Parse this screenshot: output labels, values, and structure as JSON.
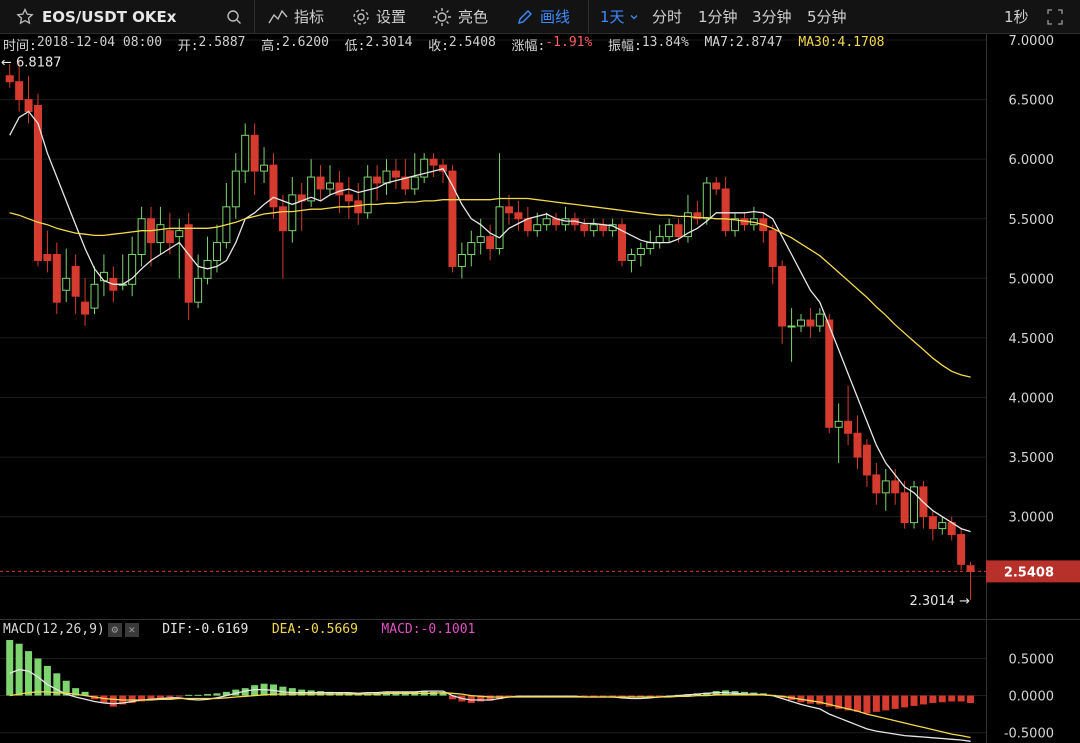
{
  "toolbar": {
    "symbol": "EOS/USDT OKEx",
    "indicators_label": "指标",
    "settings_label": "设置",
    "theme_label": "亮色",
    "draw_label": "画线",
    "interval_active": "1天",
    "intervals": [
      "分时",
      "1分钟",
      "3分钟",
      "5分钟"
    ],
    "right_interval": "1秒"
  },
  "info": {
    "time_label": "时间:",
    "time": "2018-12-04 08:00",
    "open_label": "开:",
    "open": "2.5887",
    "high_label": "高:",
    "high": "2.6200",
    "low_label": "低:",
    "low": "2.3014",
    "close_label": "收:",
    "close": "2.5408",
    "change_label": "涨幅:",
    "change": "-1.91%",
    "amplitude_label": "振幅:",
    "amplitude": "13.84%",
    "ma7_label": "MA7:",
    "ma7": "2.8747",
    "ma30_label": "MA30:",
    "ma30": "4.1708"
  },
  "chart_data": [
    {
      "type": "candlestick",
      "title": "EOS/USDT OKEx",
      "ylim": [
        2.2,
        7.0
      ],
      "y_ticks": [
        "7.0000",
        "6.5000",
        "6.0000",
        "5.5000",
        "5.0000",
        "4.5000",
        "4.0000",
        "3.5000",
        "3.0000",
        "2.5000"
      ],
      "last_price": "2.5408",
      "high_marker": "6.8187",
      "low_marker": "2.3014",
      "candles": [
        [
          6.7,
          6.65,
          6.8,
          6.6
        ],
        [
          6.65,
          6.5,
          6.82,
          6.4
        ],
        [
          6.5,
          6.4,
          6.7,
          6.3
        ],
        [
          6.45,
          5.15,
          6.55,
          5.1
        ],
        [
          5.2,
          5.15,
          5.4,
          5.05
        ],
        [
          5.2,
          4.8,
          5.3,
          4.7
        ],
        [
          4.9,
          5.0,
          5.25,
          4.8
        ],
        [
          5.1,
          4.85,
          5.2,
          4.7
        ],
        [
          4.8,
          4.7,
          5.0,
          4.6
        ],
        [
          4.75,
          4.95,
          5.1,
          4.7
        ],
        [
          4.98,
          5.05,
          5.2,
          4.85
        ],
        [
          5.0,
          4.9,
          5.1,
          4.8
        ],
        [
          4.95,
          4.95,
          5.2,
          4.9
        ],
        [
          4.95,
          5.2,
          5.35,
          4.85
        ],
        [
          5.2,
          5.5,
          5.6,
          5.1
        ],
        [
          5.5,
          5.3,
          5.6,
          5.1
        ],
        [
          5.3,
          5.45,
          5.6,
          5.2
        ],
        [
          5.4,
          5.3,
          5.55,
          5.2
        ],
        [
          5.35,
          5.4,
          5.5,
          5.0
        ],
        [
          5.45,
          4.8,
          5.55,
          4.65
        ],
        [
          4.8,
          5.0,
          5.2,
          4.75
        ],
        [
          5.0,
          5.15,
          5.35,
          4.95
        ],
        [
          5.15,
          5.3,
          5.45,
          5.05
        ],
        [
          5.3,
          5.6,
          5.8,
          5.25
        ],
        [
          5.6,
          5.9,
          6.05,
          5.5
        ],
        [
          5.9,
          6.2,
          6.3,
          5.8
        ],
        [
          6.2,
          5.9,
          6.3,
          5.7
        ],
        [
          5.9,
          5.95,
          6.1,
          5.8
        ],
        [
          5.95,
          5.6,
          6.05,
          5.5
        ],
        [
          5.6,
          5.4,
          5.7,
          5.0
        ],
        [
          5.4,
          5.7,
          5.85,
          5.3
        ],
        [
          5.7,
          5.65,
          5.8,
          5.4
        ],
        [
          5.65,
          5.85,
          6.0,
          5.6
        ],
        [
          5.85,
          5.75,
          5.95,
          5.65
        ],
        [
          5.75,
          5.8,
          5.95,
          5.7
        ],
        [
          5.8,
          5.7,
          5.9,
          5.55
        ],
        [
          5.7,
          5.65,
          5.85,
          5.5
        ],
        [
          5.65,
          5.55,
          5.8,
          5.45
        ],
        [
          5.55,
          5.85,
          5.95,
          5.5
        ],
        [
          5.85,
          5.8,
          5.95,
          5.65
        ],
        [
          5.8,
          5.9,
          6.0,
          5.7
        ],
        [
          5.9,
          5.85,
          6.0,
          5.75
        ],
        [
          5.85,
          5.75,
          6.0,
          5.7
        ],
        [
          5.75,
          5.85,
          6.05,
          5.7
        ],
        [
          5.85,
          6.0,
          6.05,
          5.8
        ],
        [
          6.0,
          5.95,
          6.05,
          5.85
        ],
        [
          5.95,
          5.9,
          6.0,
          5.8
        ],
        [
          5.9,
          5.1,
          5.95,
          5.05
        ],
        [
          5.1,
          5.2,
          5.3,
          5.0
        ],
        [
          5.2,
          5.3,
          5.4,
          5.1
        ],
        [
          5.3,
          5.35,
          5.5,
          5.2
        ],
        [
          5.35,
          5.25,
          5.45,
          5.15
        ],
        [
          5.25,
          5.6,
          6.05,
          5.2
        ],
        [
          5.6,
          5.55,
          5.7,
          5.45
        ],
        [
          5.55,
          5.5,
          5.65,
          5.4
        ],
        [
          5.5,
          5.4,
          5.6,
          5.35
        ],
        [
          5.4,
          5.45,
          5.55,
          5.35
        ],
        [
          5.45,
          5.5,
          5.55,
          5.4
        ],
        [
          5.5,
          5.45,
          5.55,
          5.4
        ],
        [
          5.45,
          5.5,
          5.6,
          5.4
        ],
        [
          5.5,
          5.45,
          5.55,
          5.4
        ],
        [
          5.45,
          5.4,
          5.5,
          5.35
        ],
        [
          5.4,
          5.45,
          5.5,
          5.35
        ],
        [
          5.45,
          5.4,
          5.5,
          5.35
        ],
        [
          5.4,
          5.45,
          5.5,
          5.35
        ],
        [
          5.45,
          5.15,
          5.5,
          5.1
        ],
        [
          5.15,
          5.2,
          5.25,
          5.05
        ],
        [
          5.2,
          5.25,
          5.3,
          5.1
        ],
        [
          5.25,
          5.3,
          5.4,
          5.2
        ],
        [
          5.3,
          5.35,
          5.45,
          5.25
        ],
        [
          5.35,
          5.45,
          5.5,
          5.3
        ],
        [
          5.45,
          5.35,
          5.5,
          5.3
        ],
        [
          5.35,
          5.55,
          5.7,
          5.3
        ],
        [
          5.55,
          5.5,
          5.65,
          5.45
        ],
        [
          5.5,
          5.8,
          5.85,
          5.45
        ],
        [
          5.8,
          5.75,
          5.85,
          5.7
        ],
        [
          5.75,
          5.4,
          5.85,
          5.35
        ],
        [
          5.4,
          5.5,
          5.55,
          5.35
        ],
        [
          5.5,
          5.45,
          5.55,
          5.4
        ],
        [
          5.45,
          5.5,
          5.6,
          5.4
        ],
        [
          5.5,
          5.4,
          5.55,
          5.3
        ],
        [
          5.4,
          5.1,
          5.45,
          4.95
        ],
        [
          5.1,
          4.6,
          5.15,
          4.45
        ],
        [
          4.6,
          4.6,
          4.75,
          4.3
        ],
        [
          4.6,
          4.65,
          4.7,
          4.55
        ],
        [
          4.65,
          4.6,
          4.75,
          4.5
        ],
        [
          4.6,
          4.7,
          4.75,
          4.55
        ],
        [
          4.65,
          3.75,
          4.7,
          3.7
        ],
        [
          3.75,
          3.8,
          3.95,
          3.45
        ],
        [
          3.8,
          3.7,
          4.1,
          3.6
        ],
        [
          3.7,
          3.5,
          3.85,
          3.4
        ],
        [
          3.6,
          3.35,
          3.65,
          3.25
        ],
        [
          3.35,
          3.2,
          3.45,
          3.1
        ],
        [
          3.2,
          3.3,
          3.4,
          3.05
        ],
        [
          3.3,
          3.2,
          3.4,
          3.1
        ],
        [
          3.2,
          2.95,
          3.3,
          2.9
        ],
        [
          2.95,
          3.25,
          3.3,
          2.9
        ],
        [
          3.25,
          3.0,
          3.3,
          2.9
        ],
        [
          3.0,
          2.9,
          3.05,
          2.8
        ],
        [
          2.9,
          2.95,
          3.0,
          2.85
        ],
        [
          2.95,
          2.85,
          3.0,
          2.8
        ],
        [
          2.85,
          2.6,
          2.9,
          2.55
        ],
        [
          2.5887,
          2.5408,
          2.62,
          2.3014
        ]
      ],
      "ma7": [
        6.2,
        6.35,
        6.4,
        6.3,
        6.05,
        5.85,
        5.65,
        5.45,
        5.25,
        5.08,
        4.98,
        4.95,
        4.95,
        5.0,
        5.08,
        5.15,
        5.2,
        5.25,
        5.3,
        5.2,
        5.1,
        5.08,
        5.1,
        5.15,
        5.3,
        5.5,
        5.55,
        5.62,
        5.68,
        5.65,
        5.62,
        5.65,
        5.68,
        5.65,
        5.7,
        5.73,
        5.75,
        5.72,
        5.74,
        5.76,
        5.8,
        5.82,
        5.84,
        5.86,
        5.88,
        5.9,
        5.92,
        5.78,
        5.62,
        5.5,
        5.45,
        5.38,
        5.34,
        5.42,
        5.46,
        5.5,
        5.52,
        5.54,
        5.5,
        5.48,
        5.48,
        5.46,
        5.46,
        5.45,
        5.44,
        5.4,
        5.36,
        5.32,
        5.3,
        5.3,
        5.3,
        5.33,
        5.38,
        5.42,
        5.48,
        5.55,
        5.55,
        5.55,
        5.55,
        5.56,
        5.55,
        5.5,
        5.35,
        5.2,
        5.05,
        4.9,
        4.8,
        4.6,
        4.4,
        4.2,
        4.0,
        3.8,
        3.6,
        3.45,
        3.35,
        3.25,
        3.2,
        3.12,
        3.05,
        3.0,
        2.95,
        2.9,
        2.8747
      ],
      "ma30": [
        5.55,
        5.53,
        5.5,
        5.47,
        5.45,
        5.42,
        5.4,
        5.38,
        5.37,
        5.36,
        5.36,
        5.37,
        5.38,
        5.39,
        5.4,
        5.4,
        5.41,
        5.42,
        5.42,
        5.42,
        5.42,
        5.42,
        5.43,
        5.45,
        5.47,
        5.5,
        5.52,
        5.54,
        5.55,
        5.56,
        5.56,
        5.57,
        5.58,
        5.58,
        5.59,
        5.6,
        5.6,
        5.61,
        5.62,
        5.62,
        5.63,
        5.63,
        5.64,
        5.64,
        5.65,
        5.65,
        5.66,
        5.66,
        5.66,
        5.66,
        5.66,
        5.66,
        5.67,
        5.67,
        5.67,
        5.67,
        5.66,
        5.65,
        5.64,
        5.63,
        5.62,
        5.61,
        5.6,
        5.59,
        5.58,
        5.57,
        5.56,
        5.55,
        5.54,
        5.53,
        5.53,
        5.52,
        5.52,
        5.51,
        5.51,
        5.5,
        5.5,
        5.49,
        5.48,
        5.47,
        5.45,
        5.42,
        5.38,
        5.34,
        5.29,
        5.24,
        5.19,
        5.12,
        5.05,
        4.98,
        4.91,
        4.84,
        4.76,
        4.69,
        4.61,
        4.54,
        4.47,
        4.4,
        4.33,
        4.27,
        4.22,
        4.19,
        4.1708
      ]
    },
    {
      "type": "bar",
      "title": "MACD(12,26,9)",
      "ylim": [
        -0.6,
        0.75
      ],
      "y_ticks": [
        "0.5000",
        "0.0000",
        "-0.5000"
      ],
      "dif": -0.6169,
      "dea": -0.5669,
      "macd": -0.1001,
      "histogram": [
        0.75,
        0.7,
        0.6,
        0.5,
        0.4,
        0.3,
        0.2,
        0.1,
        0.05,
        -0.05,
        -0.1,
        -0.15,
        -0.12,
        -0.1,
        -0.08,
        -0.06,
        -0.04,
        -0.02,
        -0.01,
        0.01,
        0.01,
        0.02,
        0.03,
        0.05,
        0.08,
        0.1,
        0.14,
        0.16,
        0.15,
        0.12,
        0.1,
        0.08,
        0.07,
        0.06,
        0.05,
        0.04,
        0.04,
        0.03,
        0.03,
        0.04,
        0.04,
        0.05,
        0.05,
        0.05,
        0.06,
        0.05,
        0.04,
        -0.05,
        -0.08,
        -0.1,
        -0.08,
        -0.07,
        -0.05,
        -0.02,
        -0.01,
        -0.01,
        -0.01,
        -0.01,
        -0.01,
        -0.01,
        -0.01,
        -0.01,
        -0.01,
        -0.01,
        -0.01,
        -0.01,
        -0.02,
        -0.02,
        -0.02,
        -0.01,
        0.0,
        0.01,
        0.02,
        0.03,
        0.04,
        0.06,
        0.07,
        0.06,
        0.05,
        0.04,
        0.03,
        0.01,
        -0.03,
        -0.06,
        -0.09,
        -0.11,
        -0.12,
        -0.15,
        -0.18,
        -0.2,
        -0.22,
        -0.24,
        -0.22,
        -0.2,
        -0.18,
        -0.16,
        -0.14,
        -0.12,
        -0.1,
        -0.09,
        -0.08,
        -0.08,
        -0.1001
      ],
      "dif_line": [
        0.3,
        0.35,
        0.33,
        0.25,
        0.15,
        0.08,
        0.02,
        -0.02,
        -0.05,
        -0.08,
        -0.1,
        -0.11,
        -0.1,
        -0.08,
        -0.06,
        -0.05,
        -0.04,
        -0.03,
        -0.03,
        -0.05,
        -0.06,
        -0.05,
        -0.03,
        0.0,
        0.03,
        0.06,
        0.08,
        0.08,
        0.07,
        0.05,
        0.04,
        0.04,
        0.04,
        0.04,
        0.04,
        0.04,
        0.04,
        0.03,
        0.04,
        0.04,
        0.05,
        0.05,
        0.05,
        0.05,
        0.06,
        0.06,
        0.06,
        0.0,
        -0.04,
        -0.06,
        -0.06,
        -0.06,
        -0.04,
        -0.02,
        -0.01,
        -0.01,
        -0.01,
        -0.01,
        -0.01,
        -0.01,
        -0.01,
        -0.02,
        -0.02,
        -0.02,
        -0.02,
        -0.03,
        -0.04,
        -0.04,
        -0.03,
        -0.02,
        -0.01,
        0.0,
        0.01,
        0.02,
        0.03,
        0.04,
        0.04,
        0.03,
        0.02,
        0.02,
        0.01,
        0.0,
        -0.04,
        -0.08,
        -0.12,
        -0.15,
        -0.18,
        -0.25,
        -0.3,
        -0.35,
        -0.4,
        -0.45,
        -0.48,
        -0.5,
        -0.52,
        -0.54,
        -0.55,
        -0.56,
        -0.57,
        -0.58,
        -0.59,
        -0.6,
        -0.6169
      ],
      "dea_line": [
        0.0,
        0.02,
        0.04,
        0.05,
        0.05,
        0.04,
        0.03,
        0.02,
        0.0,
        -0.02,
        -0.04,
        -0.05,
        -0.06,
        -0.06,
        -0.06,
        -0.06,
        -0.05,
        -0.05,
        -0.04,
        -0.04,
        -0.04,
        -0.04,
        -0.04,
        -0.03,
        -0.02,
        -0.01,
        0.0,
        0.01,
        0.02,
        0.02,
        0.02,
        0.02,
        0.02,
        0.02,
        0.02,
        0.02,
        0.02,
        0.02,
        0.02,
        0.02,
        0.03,
        0.03,
        0.03,
        0.03,
        0.03,
        0.03,
        0.04,
        0.03,
        0.02,
        0.0,
        -0.01,
        -0.02,
        -0.02,
        -0.02,
        -0.02,
        -0.02,
        -0.02,
        -0.02,
        -0.02,
        -0.02,
        -0.02,
        -0.02,
        -0.02,
        -0.02,
        -0.02,
        -0.02,
        -0.02,
        -0.02,
        -0.02,
        -0.02,
        -0.02,
        -0.01,
        -0.01,
        0.0,
        0.0,
        0.01,
        0.01,
        0.01,
        0.01,
        0.01,
        0.01,
        0.0,
        -0.01,
        -0.03,
        -0.05,
        -0.07,
        -0.09,
        -0.12,
        -0.15,
        -0.18,
        -0.21,
        -0.25,
        -0.28,
        -0.31,
        -0.34,
        -0.37,
        -0.4,
        -0.43,
        -0.46,
        -0.49,
        -0.52,
        -0.54,
        -0.5669
      ]
    }
  ],
  "colors": {
    "up": "#7ed46f",
    "down": "#d63b2f",
    "ma7": "#e6e6e6",
    "ma30": "#f3d94e",
    "macd_pink": "#e052c4",
    "accent": "#3d8bff"
  },
  "macd_legend": {
    "title": "MACD(12,26,9)",
    "dif_label": "DIF:",
    "dif": "-0.6169",
    "dea_label": "DEA:",
    "dea": "-0.5669",
    "macd_label": "MACD:",
    "macd": "-0.1001"
  }
}
